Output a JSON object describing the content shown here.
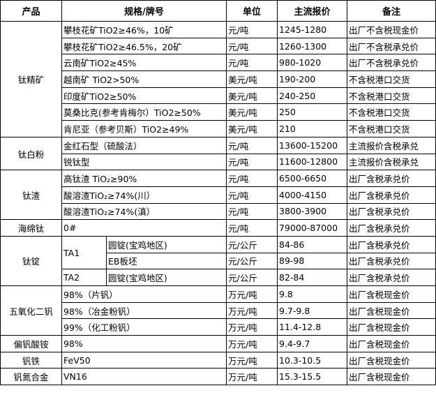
{
  "headers": [
    "产品",
    "规格/牌号",
    "单位",
    "主流报价",
    "备注"
  ],
  "groups": [
    {
      "product": "钛精矿",
      "rows": [
        {
          "spec": "攀枝花矿TiO2≥46%，10矿",
          "unit": "元/吨",
          "price": "1245-1280",
          "note": "出厂不含税现金价"
        },
        {
          "spec": "攀枝花矿TiO2≥46.5%，20矿",
          "unit": "元/吨",
          "price": "1260-1300",
          "note": "出厂不含税承兑价"
        },
        {
          "spec": "云南矿TiO2≥45%",
          "unit": "元/吨",
          "price": "980-1020",
          "note": "出厂不含税承兑价"
        },
        {
          "spec": "越南矿 TiO2>50%",
          "unit": "美元/吨",
          "price": "190-200",
          "note": "不含税港口交货"
        },
        {
          "spec": "印度矿TiO2≥50%",
          "unit": "美元/吨",
          "price": "240-250",
          "note": "不含税港口交货"
        },
        {
          "spec": "莫桑比克(参考肯梅尔）TiO2≥50%",
          "unit": "美元/吨",
          "price": "250",
          "note": "不含税港口交货"
        },
        {
          "spec": "肯尼亚（参考贝斯）TiO2≥49%",
          "unit": "美元/吨",
          "price": "210",
          "note": "不含税港口交货"
        }
      ]
    },
    {
      "product": "钛白粉",
      "rows": [
        {
          "spec": "金红石型（硫酸法）",
          "unit": "元/吨",
          "price": "13600-15200",
          "note": "主流报价含税承兑"
        },
        {
          "spec": "锐钛型",
          "unit": "元/吨",
          "price": "11600-12800",
          "note": "主流报价含税承兑"
        }
      ]
    },
    {
      "product": "钛渣",
      "rows": [
        {
          "spec": "高钛渣 TiO₂≥90%",
          "unit": "元/吨",
          "price": "6500-6650",
          "note": "出厂含税承兑价"
        },
        {
          "spec": "酸溶渣TiO₂≥74%(川）",
          "unit": "元/吨",
          "price": "4000-4150",
          "note": "出厂含税承兑价"
        },
        {
          "spec": "酸溶渣TiO₂≥74%(滇）",
          "unit": "元/吨",
          "price": "3800-3900",
          "note": "出厂含税承兑价"
        }
      ]
    },
    {
      "product": "海绵钛",
      "rows": [
        {
          "spec": "0#",
          "unit": "元/吨",
          "price": "79000-87000",
          "note": "出厂含税承兑价"
        }
      ]
    },
    {
      "product": "钛锭",
      "rows": [
        {
          "grade": "TA1",
          "form": "圆锭(宝鸡地区)",
          "unit": "元/公斤",
          "price": "84-86",
          "note": "出厂含税承兑价"
        },
        {
          "grade": "TA1",
          "form": "EB板坯",
          "unit": "元/公斤",
          "price": "89-98",
          "note": "出厂含税承兑价"
        },
        {
          "grade": "TA2",
          "form": "圆锭(宝鸡地区)",
          "unit": "元/公斤",
          "price": "82-84",
          "note": "出厂含税承兑价"
        }
      ]
    },
    {
      "product": "五氧化二钒",
      "rows": [
        {
          "spec": "98%（片钒）",
          "unit": "万元/吨",
          "price": "9.8",
          "note": "出厂含税现金价"
        },
        {
          "spec": "98%（冶金粉钒）",
          "unit": "万元/吨",
          "price": "9.7-9.8",
          "note": "出厂含税现金价"
        },
        {
          "spec": "99%（化工粉钒）",
          "unit": "万元/吨",
          "price": "11.4-12.8",
          "note": "出厂含税现金价"
        }
      ]
    },
    {
      "product": "偏钒酸铵",
      "rows": [
        {
          "spec": "98%",
          "unit": "万元/吨",
          "price": "9.4-9.7",
          "note": "出厂含税现金价"
        }
      ]
    },
    {
      "product": "钒铁",
      "rows": [
        {
          "spec": "FeV50",
          "unit": "万元/吨",
          "price": "10.3-10.5",
          "note": "出厂含税现金价"
        }
      ]
    },
    {
      "product": "钒氮合金",
      "rows": [
        {
          "spec": "VN16",
          "unit": "万元/吨",
          "price": "15.3-15.5",
          "note": "出厂含税现金价"
        }
      ]
    }
  ]
}
